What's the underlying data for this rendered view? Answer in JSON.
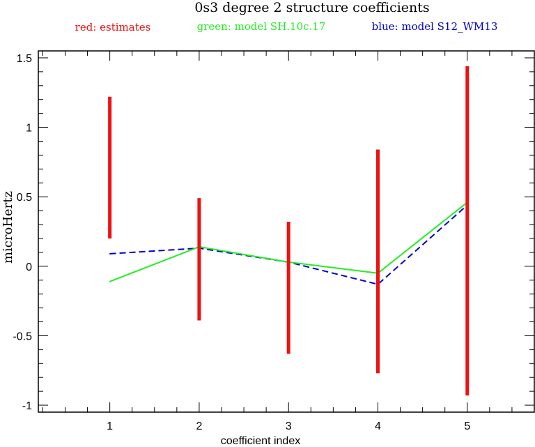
{
  "chart_data": {
    "type": "line",
    "title": "0s3 degree 2 structure coefficients",
    "legend": [
      {
        "text": "red: estimates",
        "color": "#ee1111"
      },
      {
        "text": "green: model SH.10c.17",
        "color": "#22ee22"
      },
      {
        "text": "blue: model S12_WM13",
        "color": "#0000cc"
      }
    ],
    "xlabel": "coefficient index",
    "ylabel": "microHertz",
    "xlim": [
      0.2,
      5.75
    ],
    "ylim": [
      -1.05,
      1.55
    ],
    "xticks": [
      "1",
      "2",
      "3",
      "4",
      "5"
    ],
    "yticks": [
      "-1",
      "-0.5",
      "0",
      "0.5",
      "1",
      "1.5"
    ],
    "x": [
      1,
      2,
      3,
      4,
      5
    ],
    "estimates": [
      {
        "x": 1,
        "low": 0.2,
        "high": 1.22
      },
      {
        "x": 2,
        "low": -0.39,
        "high": 0.49
      },
      {
        "x": 3,
        "low": -0.63,
        "high": 0.32
      },
      {
        "x": 4,
        "low": -0.77,
        "high": 0.84
      },
      {
        "x": 5,
        "low": -0.93,
        "high": 1.44
      }
    ],
    "series": [
      {
        "name": "green: model SH.10c.17",
        "color": "#22ee22",
        "style": "solid",
        "values": [
          -0.11,
          0.14,
          0.03,
          -0.05,
          0.46
        ]
      },
      {
        "name": "blue: model S12_WM13",
        "color": "#0000cc",
        "style": "dashed",
        "values": [
          0.09,
          0.13,
          0.03,
          -0.13,
          0.44
        ]
      }
    ],
    "grid": false
  }
}
